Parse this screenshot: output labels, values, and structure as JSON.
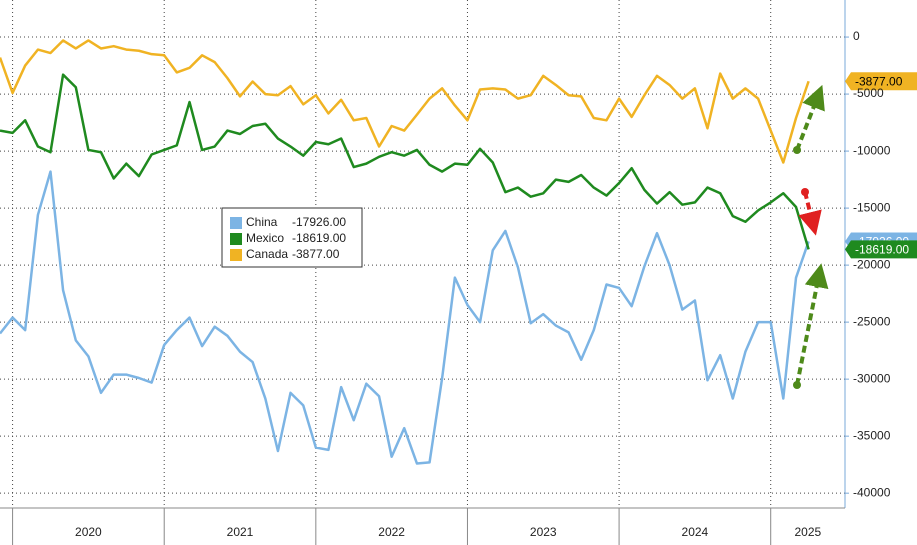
{
  "chart_data": {
    "type": "line",
    "x": [
      2019.917,
      2020,
      2020.083,
      2020.167,
      2020.25,
      2020.333,
      2020.417,
      2020.5,
      2020.583,
      2020.667,
      2020.75,
      2020.833,
      2020.917,
      2021,
      2021.083,
      2021.167,
      2021.25,
      2021.333,
      2021.417,
      2021.5,
      2021.583,
      2021.667,
      2021.75,
      2021.833,
      2021.917,
      2022,
      2022.083,
      2022.167,
      2022.25,
      2022.333,
      2022.417,
      2022.5,
      2022.583,
      2022.667,
      2022.75,
      2022.833,
      2022.917,
      2023,
      2023.083,
      2023.167,
      2023.25,
      2023.333,
      2023.417,
      2023.5,
      2023.583,
      2023.667,
      2023.75,
      2023.833,
      2023.917,
      2024,
      2024.083,
      2024.167,
      2024.25,
      2024.333,
      2024.417,
      2024.5,
      2024.583,
      2024.667,
      2024.75,
      2024.833,
      2024.917,
      2025,
      2025.083,
      2025.167,
      2025.25
    ],
    "series": [
      {
        "name": "China",
        "color": "#7cb4e4",
        "legend_value": "-17926.00",
        "values": [
          -26000,
          -24600,
          -25700,
          -15600,
          -11800,
          -22200,
          -26600,
          -28000,
          -31200,
          -29600,
          -29600,
          -29900,
          -30300,
          -27000,
          -25700,
          -24600,
          -27100,
          -25400,
          -26200,
          -27600,
          -28500,
          -31700,
          -36300,
          -31200,
          -32300,
          -36000,
          -36200,
          -30700,
          -33600,
          -30400,
          -31500,
          -36800,
          -34300,
          -37400,
          -37300,
          -29900,
          -21100,
          -23500,
          -25000,
          -18700,
          -17000,
          -20200,
          -25100,
          -24300,
          -25300,
          -25900,
          -28300,
          -25700,
          -21700,
          -22000,
          -23600,
          -20100,
          -17200,
          -20000,
          -23900,
          -23100,
          -30100,
          -27900,
          -31700,
          -27600,
          -25000,
          -25000,
          -31700,
          -21100,
          -17926
        ]
      },
      {
        "name": "Mexico",
        "color": "#1f8a1f",
        "legend_value": "-18619.00",
        "values": [
          -8200,
          -8400,
          -7300,
          -9600,
          -10100,
          -3300,
          -4400,
          -9900,
          -10100,
          -12400,
          -11100,
          -12200,
          -10300,
          -9900,
          -9500,
          -5700,
          -9900,
          -9600,
          -8200,
          -8500,
          -7800,
          -7600,
          -8900,
          -9600,
          -10400,
          -9200,
          -9400,
          -8900,
          -11400,
          -11100,
          -10500,
          -10100,
          -10400,
          -9900,
          -11200,
          -11800,
          -11100,
          -11200,
          -9800,
          -11000,
          -13600,
          -13200,
          -14000,
          -13700,
          -12500,
          -12700,
          -12100,
          -13200,
          -13900,
          -12800,
          -11500,
          -13400,
          -14600,
          -13600,
          -14700,
          -14500,
          -13200,
          -13700,
          -15700,
          -16200,
          -15200,
          -14500,
          -13700,
          -14900,
          -18619
        ]
      },
      {
        "name": "Canada",
        "color": "#f0b323",
        "legend_value": "-3877.00",
        "values": [
          -1800,
          -4900,
          -2500,
          -1100,
          -1400,
          -300,
          -1000,
          -300,
          -1000,
          -800,
          -1100,
          -1200,
          -1500,
          -1600,
          -3100,
          -2700,
          -1600,
          -2200,
          -3600,
          -5200,
          -3900,
          -5000,
          -5100,
          -4300,
          -5900,
          -5100,
          -6700,
          -5500,
          -7300,
          -7100,
          -9600,
          -7800,
          -8200,
          -6800,
          -5400,
          -4500,
          -6000,
          -7300,
          -4600,
          -4500,
          -4600,
          -5400,
          -5100,
          -3400,
          -4200,
          -5100,
          -5200,
          -7100,
          -7300,
          -5400,
          -7000,
          -5100,
          -3400,
          -4200,
          -5400,
          -4500,
          -8000,
          -3200,
          -5400,
          -4500,
          -5400,
          -8200,
          -11000,
          -7100,
          -3877
        ]
      }
    ],
    "xlim": [
      2019.917,
      2025.49
    ],
    "xticks": [
      2020,
      2021,
      2022,
      2023,
      2024,
      2025
    ],
    "ylim": [
      -41300,
      3250
    ],
    "yticks": [
      0,
      -5000,
      -10000,
      -15000,
      -20000,
      -25000,
      -30000,
      -35000,
      -40000
    ],
    "grid": true
  }
}
